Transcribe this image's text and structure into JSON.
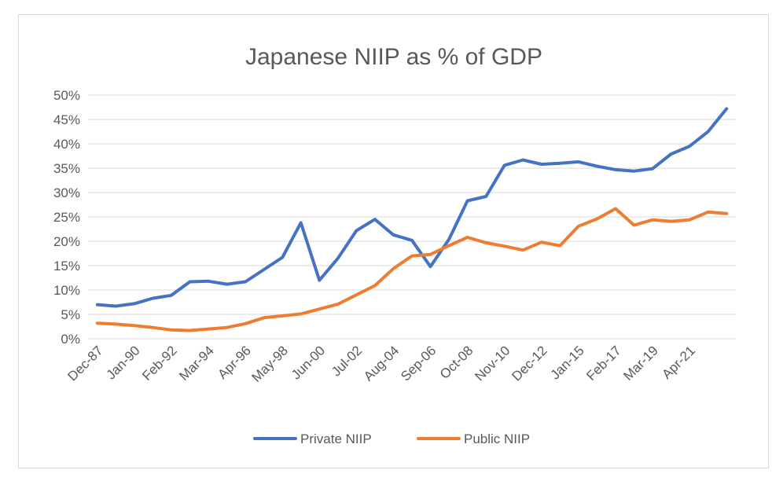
{
  "chart_data": {
    "type": "line",
    "title": "Japanese NIIP as % of GDP",
    "xlabel": "",
    "ylabel": "",
    "ylim": [
      0,
      50
    ],
    "y_ticks": [
      "0%",
      "5%",
      "10%",
      "15%",
      "20%",
      "25%",
      "30%",
      "35%",
      "40%",
      "45%",
      "50%"
    ],
    "x_tick_labels": [
      "Dec-87",
      "Jan-90",
      "Feb-92",
      "Mar-94",
      "Apr-96",
      "May-98",
      "Jun-00",
      "Jul-02",
      "Aug-04",
      "Sep-06",
      "Oct-08",
      "Nov-10",
      "Dec-12",
      "Jan-15",
      "Feb-17",
      "Mar-19",
      "Apr-21"
    ],
    "grid": true,
    "legend_position": "bottom",
    "series": [
      {
        "name": "Private NIIP",
        "color": "#4472c4",
        "values": [
          7.0,
          6.7,
          7.2,
          8.3,
          8.9,
          11.7,
          11.8,
          11.2,
          11.7,
          14.2,
          16.7,
          23.8,
          12.0,
          16.5,
          22.2,
          24.5,
          21.3,
          20.2,
          14.8,
          20.4,
          28.3,
          29.2,
          35.6,
          36.7,
          35.8,
          36.0,
          36.3,
          35.4,
          34.7,
          34.4,
          34.9,
          37.9,
          39.5,
          42.5,
          47.2
        ]
      },
      {
        "name": "Public NIIP",
        "color": "#ed7d31",
        "values": [
          3.2,
          3.0,
          2.7,
          2.3,
          1.8,
          1.7,
          2.0,
          2.3,
          3.1,
          4.3,
          4.7,
          5.1,
          6.1,
          7.1,
          9.0,
          10.9,
          14.4,
          17.0,
          17.3,
          19.1,
          20.8,
          19.7,
          19.0,
          18.2,
          19.8,
          19.1,
          23.1,
          24.6,
          26.7,
          23.3,
          24.4,
          24.1,
          24.4,
          26.0,
          25.7
        ]
      }
    ]
  }
}
